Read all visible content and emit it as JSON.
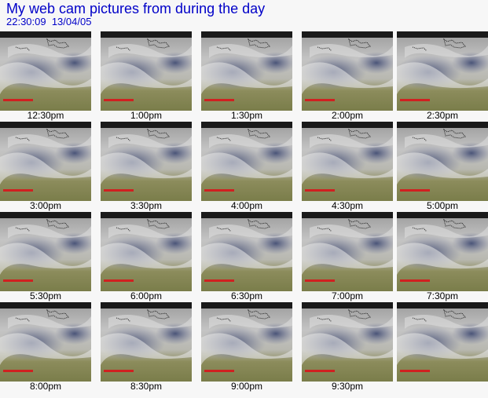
{
  "header": {
    "title": "My web cam pictures from during the day",
    "timestamp": "22:30:09  13/04/05"
  },
  "captions": [
    "12:30pm",
    "1:00pm",
    "1:30pm",
    "2:00pm",
    "2:30pm",
    "3:00pm",
    "3:30pm",
    "4:00pm",
    "4:30pm",
    "5:00pm",
    "5:30pm",
    "6:00pm",
    "6:30pm",
    "7:00pm",
    "7:30pm",
    "8:00pm",
    "8:30pm",
    "9:00pm",
    "9:30pm"
  ]
}
